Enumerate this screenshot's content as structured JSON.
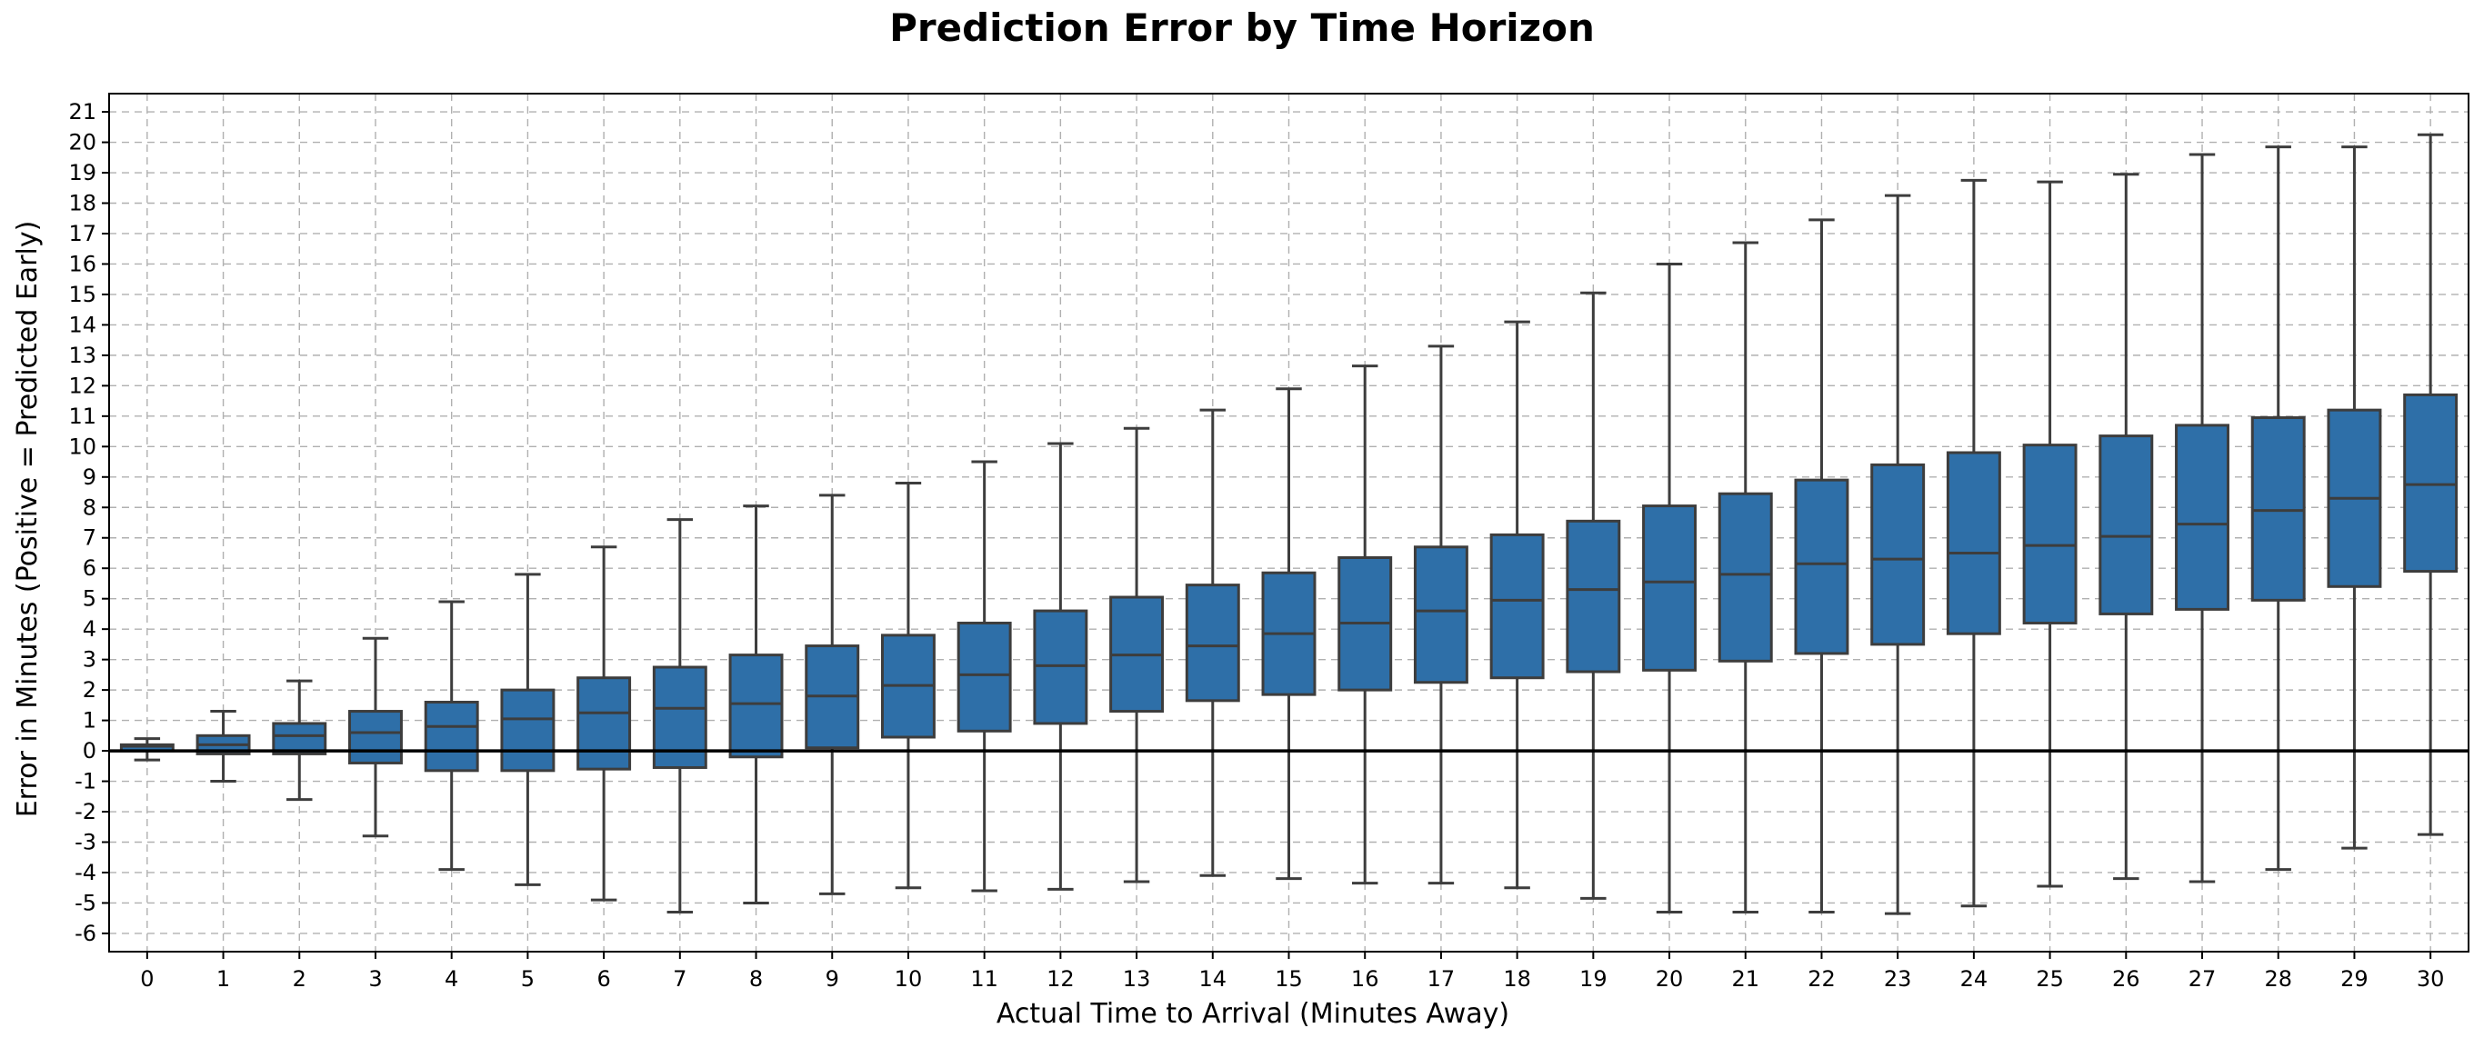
{
  "chart_data": {
    "type": "box",
    "title": "Prediction Error by Time Horizon",
    "xlabel": "Actual Time to Arrival (Minutes Away)",
    "ylabel": "Error in Minutes (Positive = Predicted Early)",
    "ylim": [
      -6.6,
      21.6
    ],
    "yticks": [
      -6,
      -5,
      -4,
      -3,
      -2,
      -1,
      0,
      1,
      2,
      3,
      4,
      5,
      6,
      7,
      8,
      9,
      10,
      11,
      12,
      13,
      14,
      15,
      16,
      17,
      18,
      19,
      20,
      21
    ],
    "grid": true,
    "zero_line": true,
    "box_color": "#2e6fa8",
    "edge_color": "#3d3d3d",
    "categories": [
      "0",
      "1",
      "2",
      "3",
      "4",
      "5",
      "6",
      "7",
      "8",
      "9",
      "10",
      "11",
      "12",
      "13",
      "14",
      "15",
      "16",
      "17",
      "18",
      "19",
      "20",
      "21",
      "22",
      "23",
      "24",
      "25",
      "26",
      "27",
      "28",
      "29",
      "30"
    ],
    "boxes": [
      {
        "x": "0",
        "whislo": -0.3,
        "q1": 0.0,
        "med": 0.15,
        "q3": 0.2,
        "whishi": 0.4
      },
      {
        "x": "1",
        "whislo": -1.0,
        "q1": -0.1,
        "med": 0.2,
        "q3": 0.5,
        "whishi": 1.3
      },
      {
        "x": "2",
        "whislo": -1.6,
        "q1": -0.1,
        "med": 0.5,
        "q3": 0.9,
        "whishi": 2.3
      },
      {
        "x": "3",
        "whislo": -2.8,
        "q1": -0.4,
        "med": 0.6,
        "q3": 1.3,
        "whishi": 3.7
      },
      {
        "x": "4",
        "whislo": -3.9,
        "q1": -0.65,
        "med": 0.8,
        "q3": 1.6,
        "whishi": 4.9
      },
      {
        "x": "5",
        "whislo": -4.4,
        "q1": -0.65,
        "med": 1.05,
        "q3": 2.0,
        "whishi": 5.8
      },
      {
        "x": "6",
        "whislo": -4.9,
        "q1": -0.6,
        "med": 1.25,
        "q3": 2.4,
        "whishi": 6.7
      },
      {
        "x": "7",
        "whislo": -5.3,
        "q1": -0.55,
        "med": 1.4,
        "q3": 2.75,
        "whishi": 7.6
      },
      {
        "x": "8",
        "whislo": -5.0,
        "q1": -0.2,
        "med": 1.55,
        "q3": 3.15,
        "whishi": 8.05
      },
      {
        "x": "9",
        "whislo": -4.7,
        "q1": 0.1,
        "med": 1.8,
        "q3": 3.45,
        "whishi": 8.4
      },
      {
        "x": "10",
        "whislo": -4.5,
        "q1": 0.45,
        "med": 2.15,
        "q3": 3.8,
        "whishi": 8.8
      },
      {
        "x": "11",
        "whislo": -4.6,
        "q1": 0.65,
        "med": 2.5,
        "q3": 4.2,
        "whishi": 9.5
      },
      {
        "x": "12",
        "whislo": -4.55,
        "q1": 0.9,
        "med": 2.8,
        "q3": 4.6,
        "whishi": 10.1
      },
      {
        "x": "13",
        "whislo": -4.3,
        "q1": 1.3,
        "med": 3.15,
        "q3": 5.05,
        "whishi": 10.6
      },
      {
        "x": "14",
        "whislo": -4.1,
        "q1": 1.65,
        "med": 3.45,
        "q3": 5.45,
        "whishi": 11.2
      },
      {
        "x": "15",
        "whislo": -4.2,
        "q1": 1.85,
        "med": 3.85,
        "q3": 5.85,
        "whishi": 11.9
      },
      {
        "x": "16",
        "whislo": -4.35,
        "q1": 2.0,
        "med": 4.2,
        "q3": 6.35,
        "whishi": 12.65
      },
      {
        "x": "17",
        "whislo": -4.35,
        "q1": 2.25,
        "med": 4.6,
        "q3": 6.7,
        "whishi": 13.3
      },
      {
        "x": "18",
        "whislo": -4.5,
        "q1": 2.4,
        "med": 4.95,
        "q3": 7.1,
        "whishi": 14.1
      },
      {
        "x": "19",
        "whislo": -4.85,
        "q1": 2.6,
        "med": 5.3,
        "q3": 7.55,
        "whishi": 15.05
      },
      {
        "x": "20",
        "whislo": -5.3,
        "q1": 2.65,
        "med": 5.55,
        "q3": 8.05,
        "whishi": 16.0
      },
      {
        "x": "21",
        "whislo": -5.3,
        "q1": 2.95,
        "med": 5.8,
        "q3": 8.45,
        "whishi": 16.7
      },
      {
        "x": "22",
        "whislo": -5.3,
        "q1": 3.2,
        "med": 6.15,
        "q3": 8.9,
        "whishi": 17.45
      },
      {
        "x": "23",
        "whislo": -5.35,
        "q1": 3.5,
        "med": 6.3,
        "q3": 9.4,
        "whishi": 18.25
      },
      {
        "x": "24",
        "whislo": -5.1,
        "q1": 3.85,
        "med": 6.5,
        "q3": 9.8,
        "whishi": 18.75
      },
      {
        "x": "25",
        "whislo": -4.45,
        "q1": 4.2,
        "med": 6.75,
        "q3": 10.05,
        "whishi": 18.7
      },
      {
        "x": "26",
        "whislo": -4.2,
        "q1": 4.5,
        "med": 7.05,
        "q3": 10.35,
        "whishi": 18.95
      },
      {
        "x": "27",
        "whislo": -4.3,
        "q1": 4.65,
        "med": 7.45,
        "q3": 10.7,
        "whishi": 19.6
      },
      {
        "x": "28",
        "whislo": -3.9,
        "q1": 4.95,
        "med": 7.9,
        "q3": 10.95,
        "whishi": 19.85
      },
      {
        "x": "29",
        "whislo": -3.2,
        "q1": 5.4,
        "med": 8.3,
        "q3": 11.2,
        "whishi": 19.85
      },
      {
        "x": "30",
        "whislo": -2.75,
        "q1": 5.9,
        "med": 8.75,
        "q3": 11.7,
        "whishi": 20.25
      }
    ]
  }
}
